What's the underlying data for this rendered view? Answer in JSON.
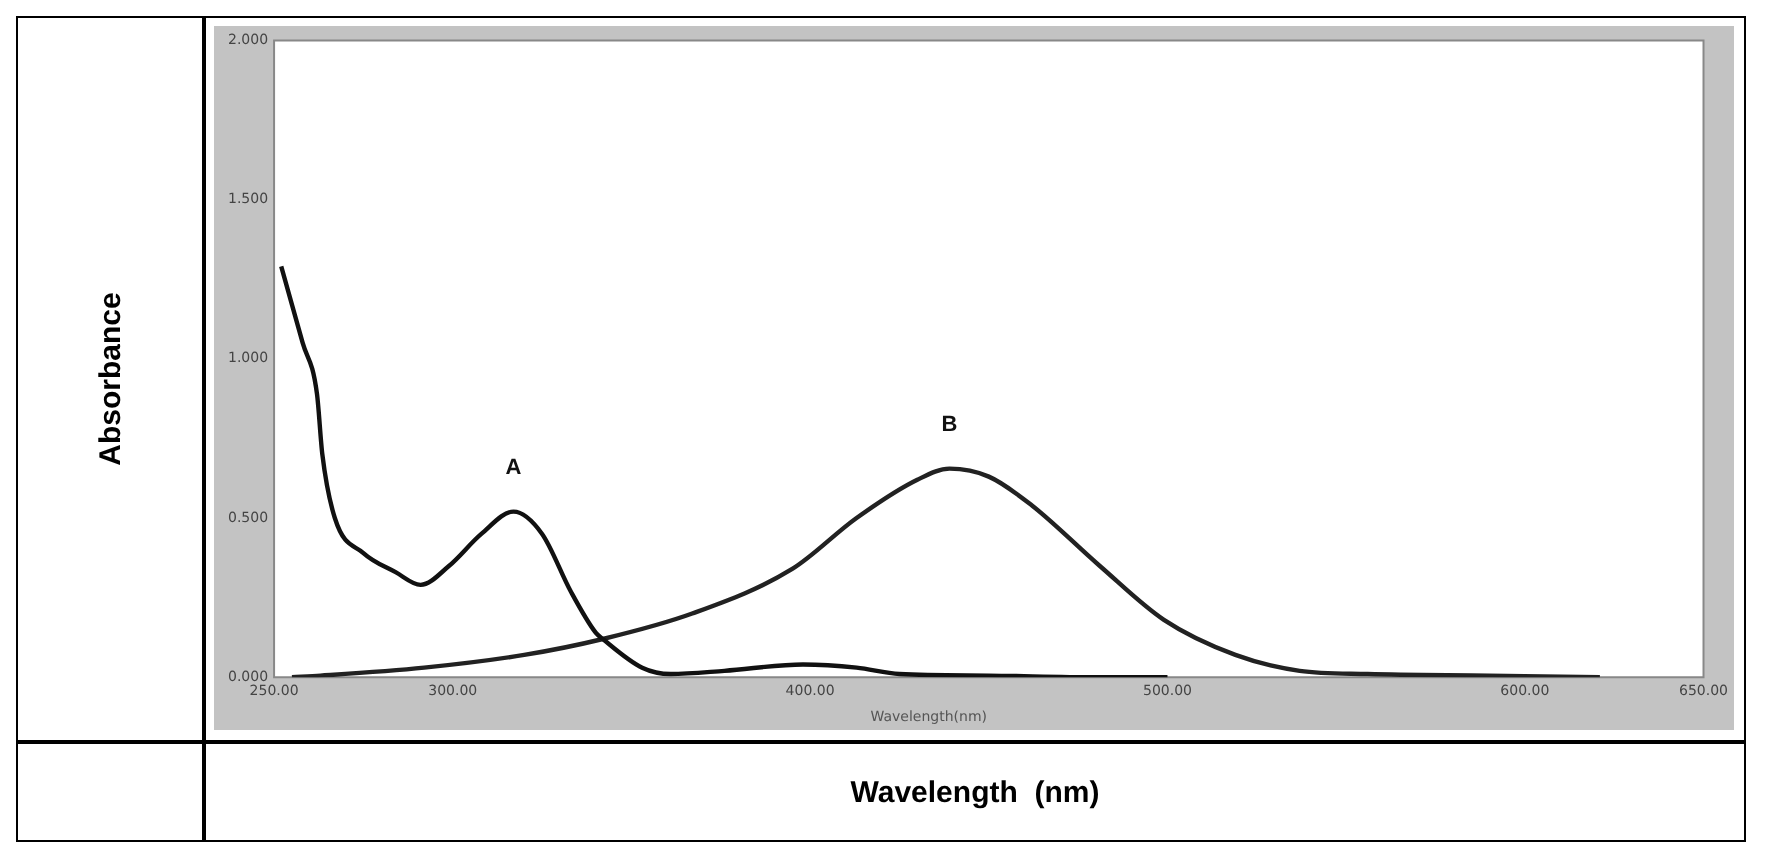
{
  "chart_data": {
    "type": "line",
    "xlabel": "Wavelength  (nm)",
    "ylabel": "Absorbance",
    "xlim": [
      250,
      650
    ],
    "xticks": [
      {
        "value": 250,
        "label": "250.00"
      },
      {
        "value": 300,
        "label": "300.00"
      },
      {
        "value": 400,
        "label": "400.00"
      },
      {
        "value": 500,
        "label": "500.00"
      },
      {
        "value": 600,
        "label": "600.00"
      },
      {
        "value": 650,
        "label": "650.00"
      }
    ],
    "ylim": [
      0,
      2
    ],
    "yticks": [
      {
        "value": 0,
        "label": "0.000"
      },
      {
        "value": 0.5,
        "label": "0.500"
      },
      {
        "value": 1,
        "label": "1.000"
      },
      {
        "value": 1.5,
        "label": "1.500"
      },
      {
        "value": 2,
        "label": "2.000"
      }
    ],
    "grid": false,
    "legend": false,
    "marker": "none",
    "line_style": "solid",
    "series": [
      {
        "color": "#111111",
        "x": [
          252,
          258,
          262,
          263.5,
          267,
          275,
          284,
          291,
          299,
          308,
          317,
          325,
          333,
          340,
          342,
          353,
          361,
          376,
          398,
          413,
          425,
          450,
          480,
          500
        ],
        "values": [
          1.29,
          1.05,
          0.89,
          0.7,
          0.5,
          0.39,
          0.33,
          0.29,
          0.35,
          0.45,
          0.52,
          0.45,
          0.27,
          0.14,
          0.12,
          0.03,
          0.01,
          0.02,
          0.04,
          0.03,
          0.01,
          0.005,
          0,
          0
        ]
      },
      {
        "color": "#222222",
        "x": [
          255,
          263,
          292,
          320,
          342,
          367,
          395,
          413,
          430,
          439,
          450,
          462,
          481,
          499,
          519,
          537,
          556,
          590,
          621
        ],
        "values": [
          0,
          0.005,
          0.03,
          0.07,
          0.12,
          0.2,
          0.34,
          0.5,
          0.62,
          0.655,
          0.63,
          0.54,
          0.35,
          0.18,
          0.07,
          0.02,
          0.01,
          0.005,
          0
        ]
      }
    ],
    "annotations": [
      {
        "text": "A",
        "x": 317,
        "y": 0.52
      },
      {
        "text": "B",
        "x": 439,
        "y": 0.655
      },
      "Wavelength(nm)"
    ]
  }
}
